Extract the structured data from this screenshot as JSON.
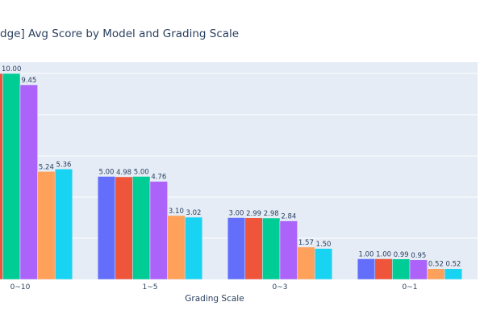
{
  "chart_data": {
    "type": "bar",
    "title": "dge] Avg Score by Model and Grading Scale",
    "xlabel": "Grading Scale",
    "ylabel": "",
    "ylim": [
      0,
      10.55
    ],
    "grid": true,
    "categories": [
      "0~10",
      "1~5",
      "0~3",
      "0~1"
    ],
    "series": [
      {
        "name": "series-1",
        "color": "#636efa",
        "values": [
          10.0,
          5.0,
          3.0,
          1.0
        ],
        "labels": [
          "",
          "5.00",
          "3.00",
          "1.00"
        ]
      },
      {
        "name": "series-2",
        "color": "#ef553b",
        "values": [
          10.0,
          4.98,
          2.99,
          1.0
        ],
        "labels": [
          "",
          "4.98",
          "2.99",
          "1.00"
        ]
      },
      {
        "name": "series-3",
        "color": "#00cc96",
        "values": [
          10.0,
          5.0,
          2.98,
          0.99
        ],
        "labels": [
          "10.00",
          "5.00",
          "2.98",
          "0.99"
        ]
      },
      {
        "name": "series-4",
        "color": "#ab63fa",
        "values": [
          9.45,
          4.76,
          2.84,
          0.95
        ],
        "labels": [
          "9.45",
          "4.76",
          "2.84",
          "0.95"
        ]
      },
      {
        "name": "series-5",
        "color": "#ffa15a",
        "values": [
          5.24,
          3.1,
          1.57,
          0.52
        ],
        "labels": [
          "5.24",
          "3.10",
          "1.57",
          "0.52"
        ]
      },
      {
        "name": "series-6",
        "color": "#19d3f3",
        "values": [
          5.36,
          3.02,
          1.5,
          0.52
        ],
        "labels": [
          "5.36",
          "3.02",
          "1.50",
          "0.52"
        ]
      }
    ],
    "gridlines": [
      2,
      4,
      6,
      8,
      10
    ]
  }
}
